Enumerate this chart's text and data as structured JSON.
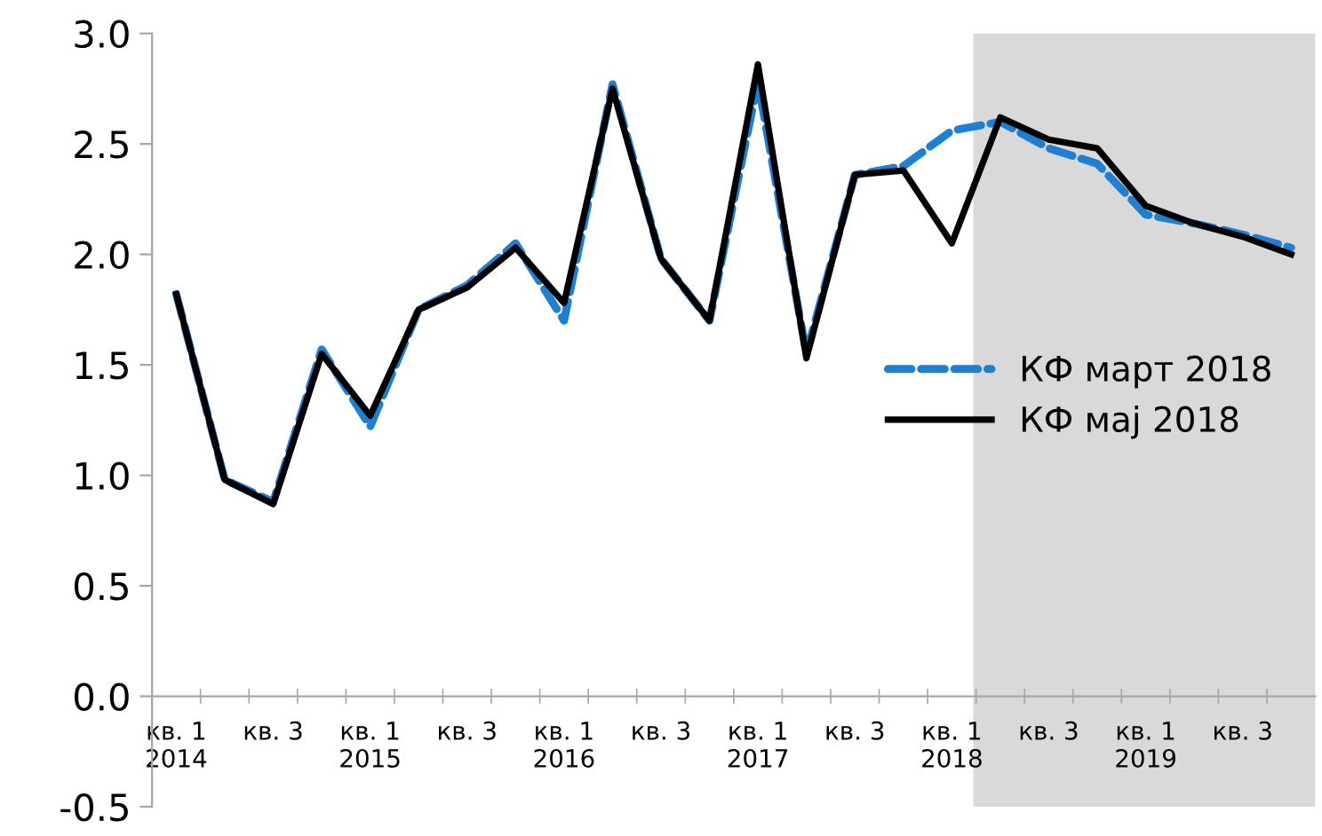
{
  "chart_data": {
    "type": "line",
    "categories": [
      "кв. 1\n2014",
      null,
      "кв. 3",
      null,
      "кв. 1\n2015",
      null,
      "кв. 3",
      null,
      "кв. 1\n2016",
      null,
      "кв. 3",
      null,
      "кв. 1\n2017",
      null,
      "кв. 3",
      null,
      "кв. 1\n2018",
      null,
      "кв. 3",
      null,
      "кв. 1\n2019",
      null,
      "кв. 3",
      null
    ],
    "series": [
      {
        "name": "КФ март 2018",
        "color": "#1f7fd0",
        "line_style": "dashed",
        "values": [
          1.82,
          0.98,
          0.88,
          1.57,
          1.22,
          1.75,
          1.86,
          2.05,
          1.7,
          2.77,
          1.98,
          1.7,
          2.78,
          1.55,
          2.36,
          2.4,
          2.56,
          2.6,
          2.48,
          2.41,
          2.18,
          2.14,
          2.09,
          2.03
        ]
      },
      {
        "name": "КФ мај 2018",
        "color": "#000000",
        "line_style": "solid",
        "values": [
          1.82,
          0.98,
          0.87,
          1.55,
          1.27,
          1.75,
          1.85,
          2.03,
          1.78,
          2.75,
          1.98,
          1.7,
          2.86,
          1.53,
          2.36,
          2.38,
          2.05,
          2.62,
          2.52,
          2.48,
          2.22,
          2.14,
          2.08,
          2.0
        ]
      }
    ],
    "ylim": [
      -0.5,
      3.0
    ],
    "yticks": [
      {
        "value": -0.5,
        "label": "-0.5"
      },
      {
        "value": 0,
        "label": "0.0"
      },
      {
        "value": 0.5,
        "label": "0.5"
      },
      {
        "value": 1,
        "label": "1.0"
      },
      {
        "value": 1.5,
        "label": "1.5"
      },
      {
        "value": 2,
        "label": "2.0"
      },
      {
        "value": 2.5,
        "label": "2.5"
      },
      {
        "value": 3,
        "label": "3.0"
      }
    ],
    "legend": "center right",
    "grid": false,
    "marker": "none"
  }
}
